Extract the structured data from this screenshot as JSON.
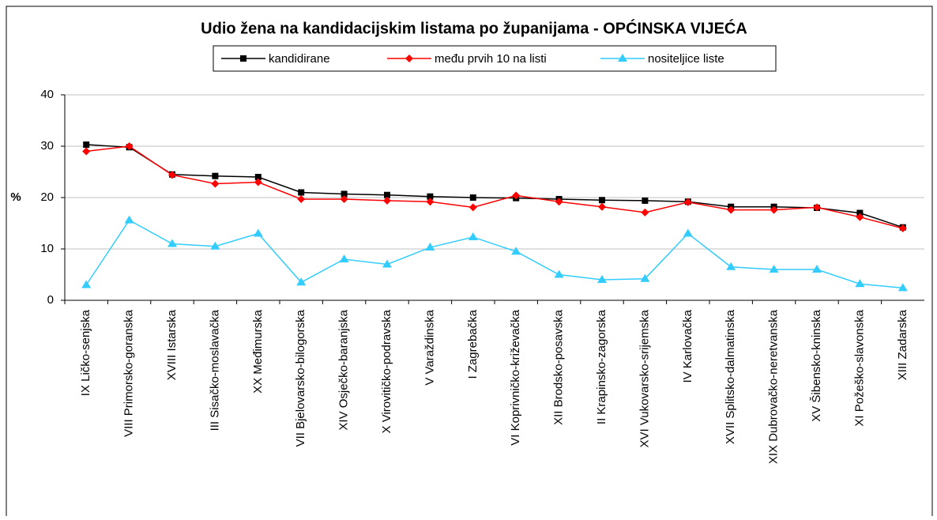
{
  "chart_data": {
    "type": "line",
    "title": "Udio žena na kandidacijskim listama po županijama - OPĆINSKA VIJEĆA",
    "ylabel": "%",
    "categories": [
      "IX Ličko-senjska",
      "VIII Primorsko-goranska",
      "XVIII Istarska",
      "III Sisačko-moslavačka",
      "XX Međimurska",
      "VII Bjelovarsko-bilogorska",
      "XIV Osječko-baranjska",
      "X Virovitičko-podravska",
      "V Varaždinska",
      "I Zagrebačka",
      "VI Koprivničko-križevačka",
      "XII Brodsko-posavska",
      "II Krapinsko-zagorska",
      "XVI Vukovarsko-srijemska",
      "IV Karlovačka",
      "XVII Splitsko-dalmatinska",
      "XIX Dubrovačko-neretvanska",
      "XV Šibensko-kninska",
      "XI Požeško-slavonska",
      "XIII Zadarska"
    ],
    "series": [
      {
        "name": "kandidirane",
        "color": "#000000",
        "marker": "square",
        "values": [
          30.3,
          29.8,
          24.5,
          24.2,
          24.0,
          21.0,
          20.7,
          20.5,
          20.2,
          20.0,
          19.9,
          19.7,
          19.5,
          19.4,
          19.2,
          18.2,
          18.2,
          18.0,
          17.0,
          14.2
        ]
      },
      {
        "name": "među prvih 10 na listi",
        "color": "#ff0000",
        "marker": "diamond",
        "values": [
          29.0,
          30.0,
          24.4,
          22.7,
          23.0,
          19.7,
          19.7,
          19.4,
          19.2,
          18.1,
          20.4,
          19.2,
          18.2,
          17.1,
          19.1,
          17.6,
          17.6,
          18.1,
          16.2,
          14.0
        ]
      },
      {
        "name": "nositeljice liste",
        "color": "#33ccff",
        "marker": "triangle",
        "values": [
          3.0,
          15.6,
          11.0,
          10.5,
          13.0,
          3.5,
          8.0,
          7.0,
          10.3,
          12.3,
          9.5,
          5.0,
          4.0,
          4.2,
          13.0,
          6.5,
          6.0,
          6.0,
          3.2,
          2.4
        ]
      }
    ],
    "ylim": [
      0,
      40
    ],
    "yticks": [
      0,
      10,
      20,
      30,
      40
    ],
    "grid": true,
    "legend": "top"
  }
}
